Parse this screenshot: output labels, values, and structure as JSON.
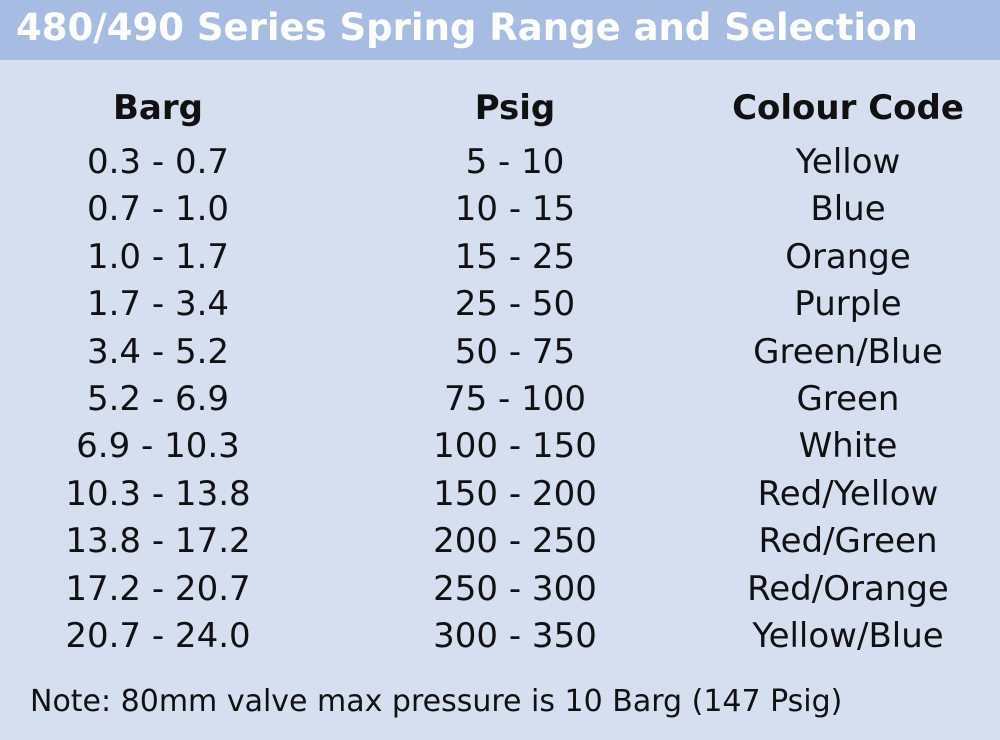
{
  "header": {
    "title": "480/490 Series Spring Range and Selection"
  },
  "table": {
    "columns": [
      "Barg",
      "Psig",
      "Colour Code"
    ],
    "rows": [
      [
        "0.3 - 0.7",
        "5 - 10",
        "Yellow"
      ],
      [
        "0.7 - 1.0",
        "10 - 15",
        "Blue"
      ],
      [
        "1.0 - 1.7",
        "15 - 25",
        "Orange"
      ],
      [
        "1.7 - 3.4",
        "25 - 50",
        "Purple"
      ],
      [
        "3.4 - 5.2",
        "50 - 75",
        "Green/Blue"
      ],
      [
        "5.2 - 6.9",
        "75 - 100",
        "Green"
      ],
      [
        "6.9 - 10.3",
        "100 - 150",
        "White"
      ],
      [
        "10.3 - 13.8",
        "150 - 200",
        "Red/Yellow"
      ],
      [
        "13.8 - 17.2",
        "200 - 250",
        "Red/Green"
      ],
      [
        "17.2 - 20.7",
        "250 - 300",
        "Red/Orange"
      ],
      [
        "20.7 - 24.0",
        "300 - 350",
        "Yellow/Blue"
      ]
    ]
  },
  "note": "Note: 80mm valve max pressure is 10 Barg (147 Psig)"
}
